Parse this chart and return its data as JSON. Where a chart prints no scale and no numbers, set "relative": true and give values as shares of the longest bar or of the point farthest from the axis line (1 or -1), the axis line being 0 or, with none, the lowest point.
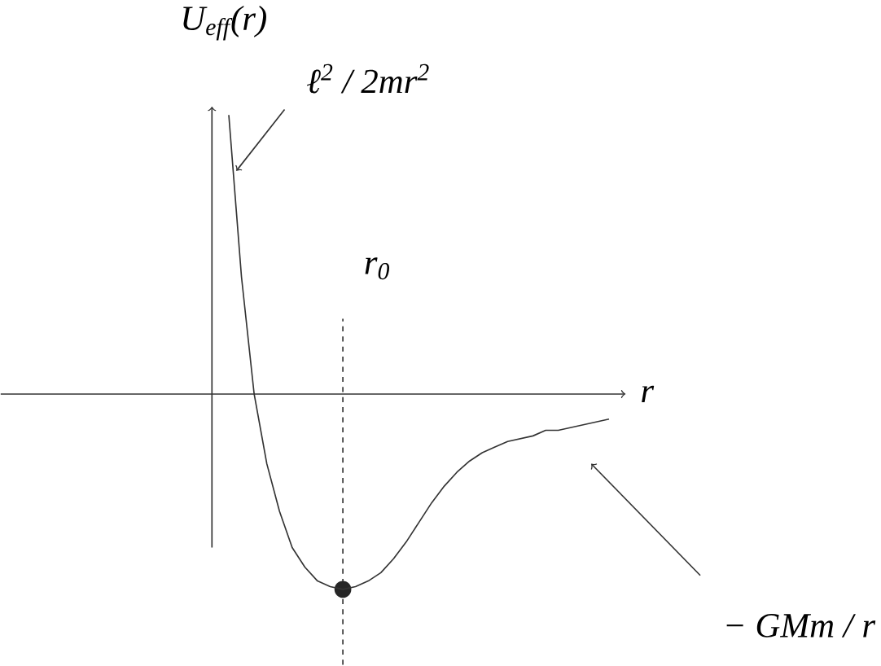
{
  "chart_data": {
    "type": "line",
    "relative": true,
    "xlabel": "r",
    "ylabel": "U$_{eff}$(r)",
    "categories": [
      null,
      null,
      null,
      null,
      null,
      null,
      null,
      null,
      null,
      null,
      null,
      null,
      null,
      null,
      null,
      null,
      null,
      null,
      null,
      null,
      null,
      null,
      null,
      null,
      null,
      null,
      null,
      null,
      null,
      null,
      null
    ],
    "series": [
      {
        "color": "#333333",
        "values": [
          1.0,
          0.42,
          0,
          -0.25,
          -0.42,
          -0.55,
          -0.62,
          -0.67,
          -0.69,
          -0.7,
          -0.69,
          -0.67,
          -0.64,
          -0.59,
          -0.53,
          -0.46,
          -0.39,
          -0.33,
          -0.28,
          -0.24,
          -0.21,
          -0.19,
          -0.17,
          -0.16,
          -0.15,
          -0.13,
          -0.13,
          -0.12,
          -0.11,
          -0.1,
          -0.09
        ]
      }
    ],
    "annotations": [
      "ℓ$^{2}$ / 2mr$^{2}$",
      "− GMm / r",
      "r$_{0}$"
    ]
  }
}
